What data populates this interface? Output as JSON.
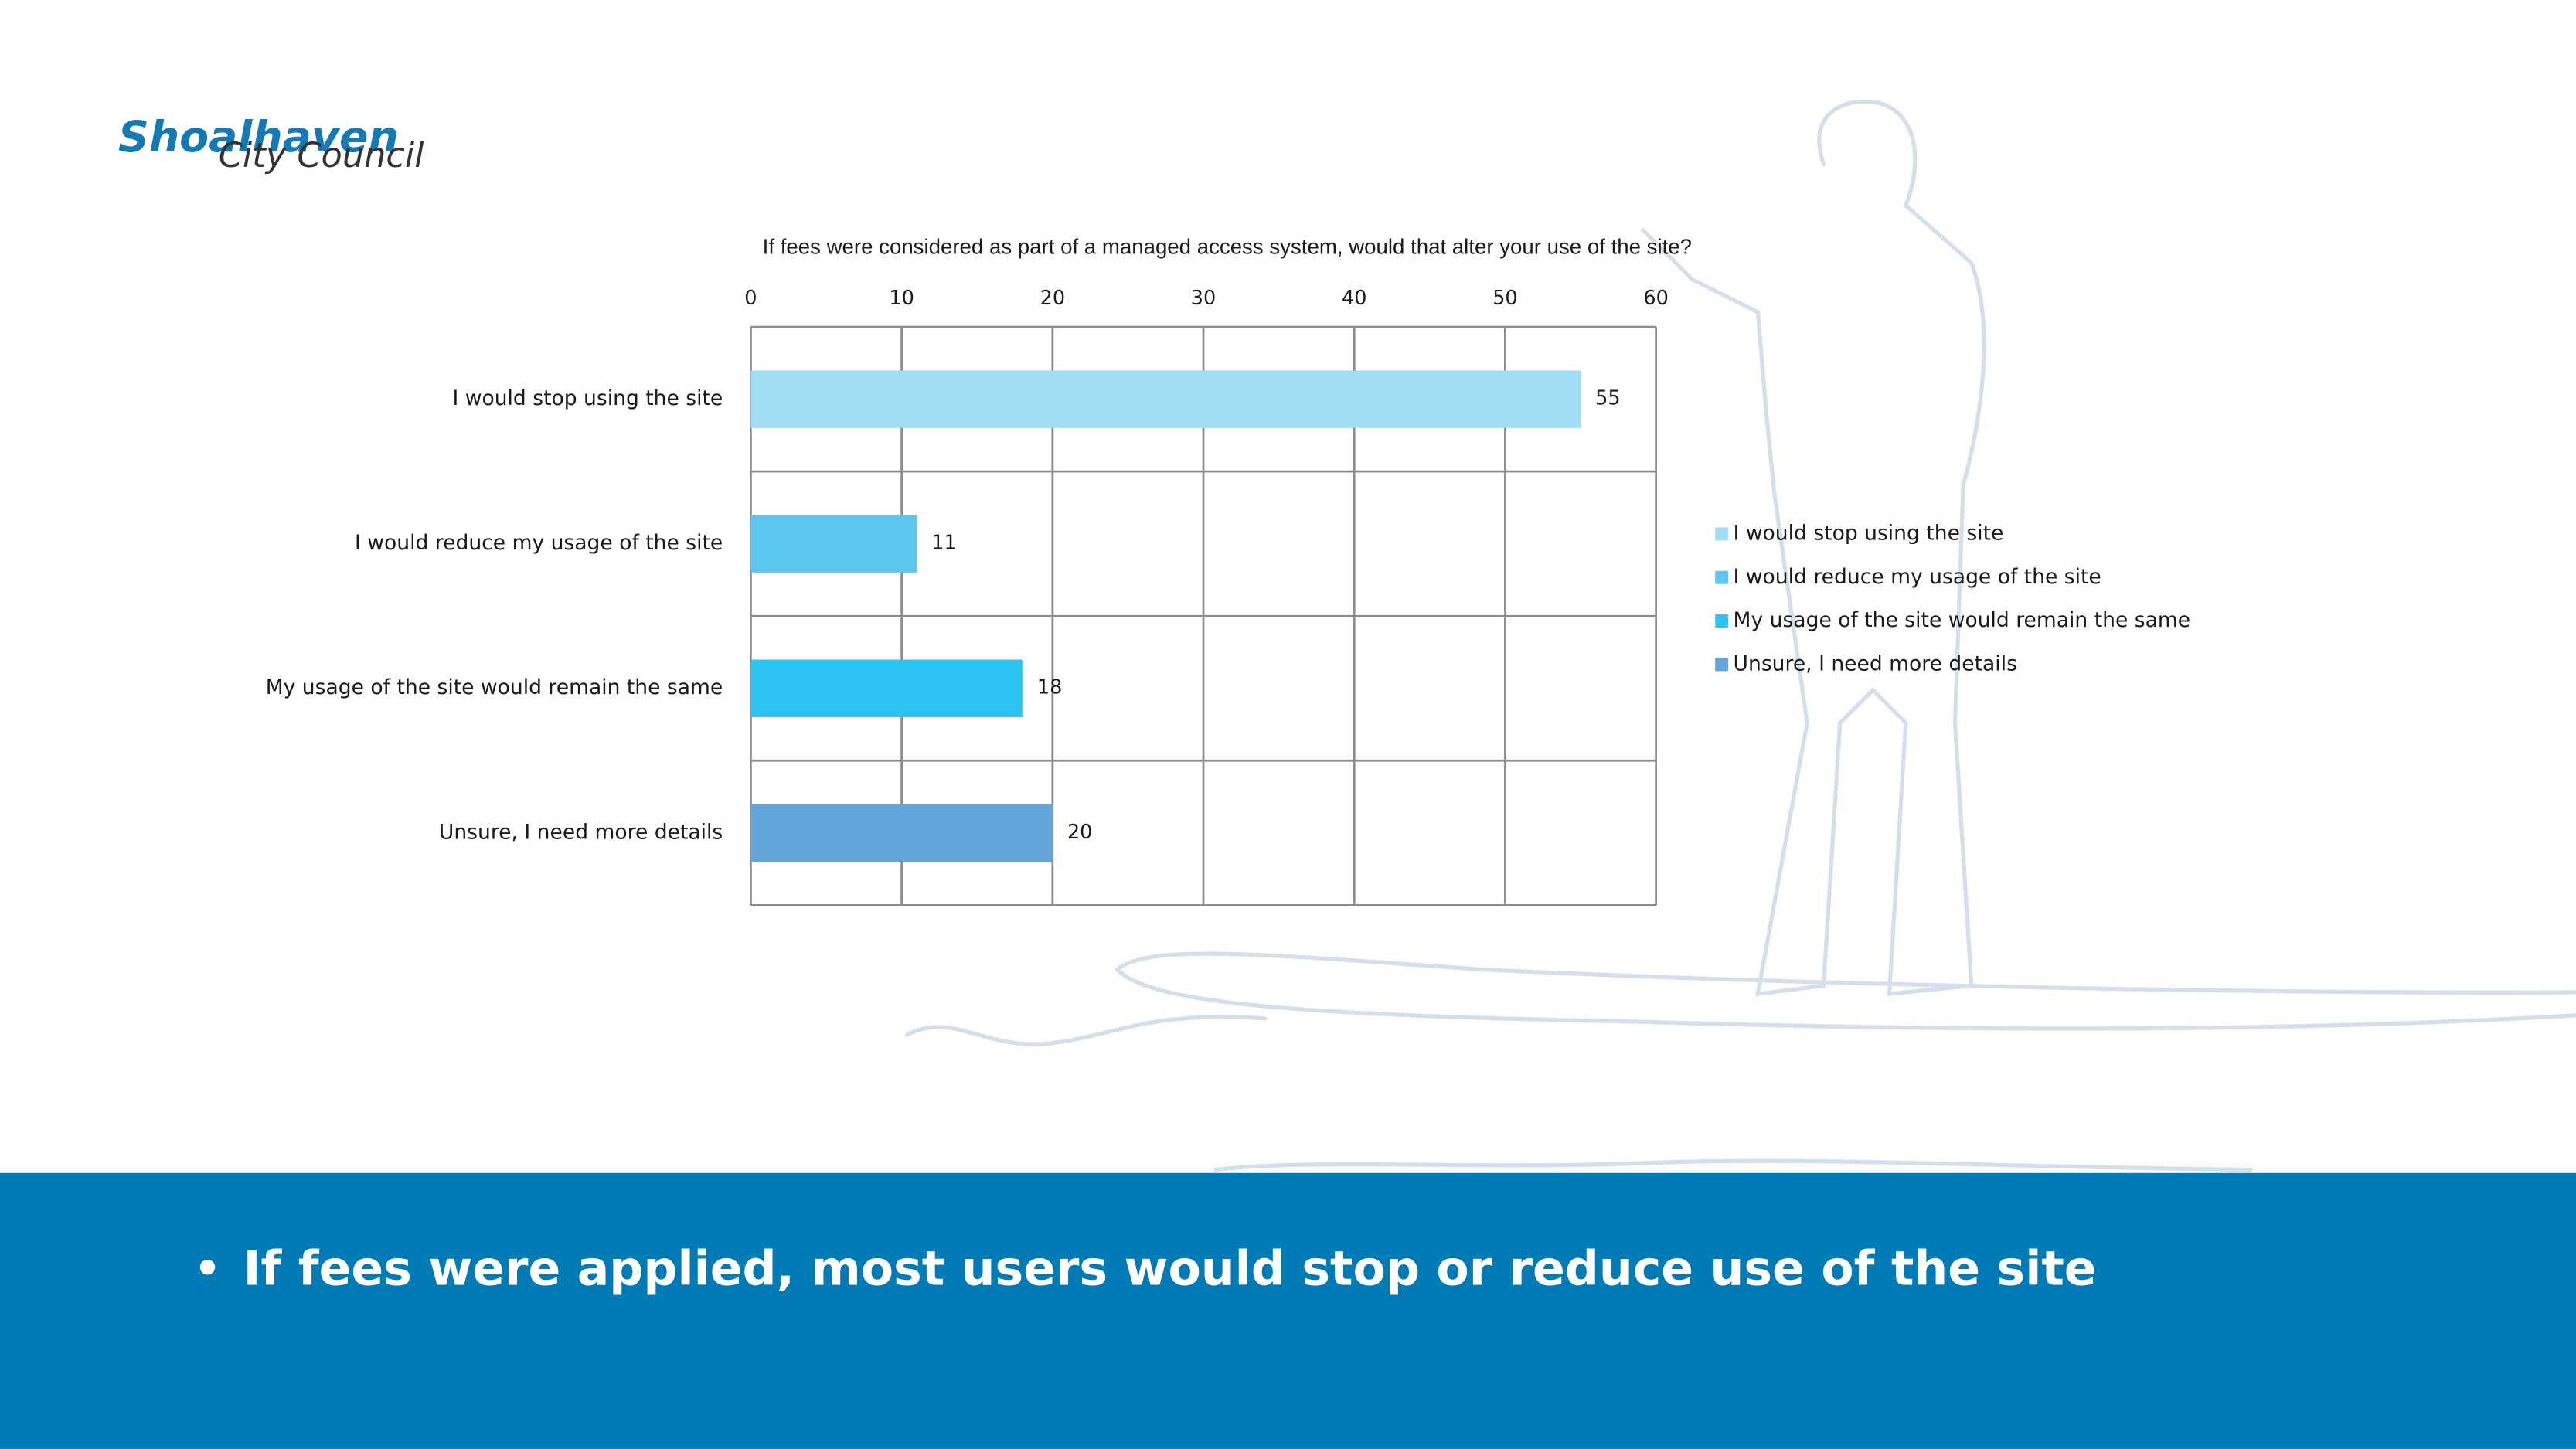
{
  "logo": {
    "name": "Shoalhaven",
    "sub": "City Council"
  },
  "chart_data": {
    "type": "bar",
    "orientation": "horizontal",
    "title": "If fees were considered as part of a managed access system, would that alter your use of the site?",
    "categories": [
      "I would stop using the site",
      "I would reduce my usage of the site",
      "My usage of the site would remain the same",
      "Unsure, I need more details"
    ],
    "values": [
      55,
      11,
      18,
      20
    ],
    "colors": [
      "#a1dcf5",
      "#5bc6ef",
      "#2ec4f2",
      "#62a6db"
    ],
    "xlim": [
      0,
      60
    ],
    "xticks": [
      0,
      10,
      20,
      30,
      40,
      50,
      60
    ],
    "grid": true,
    "legend": "right"
  },
  "footer": {
    "bullet": "If fees were applied, most users would stop or reduce use of the site"
  }
}
